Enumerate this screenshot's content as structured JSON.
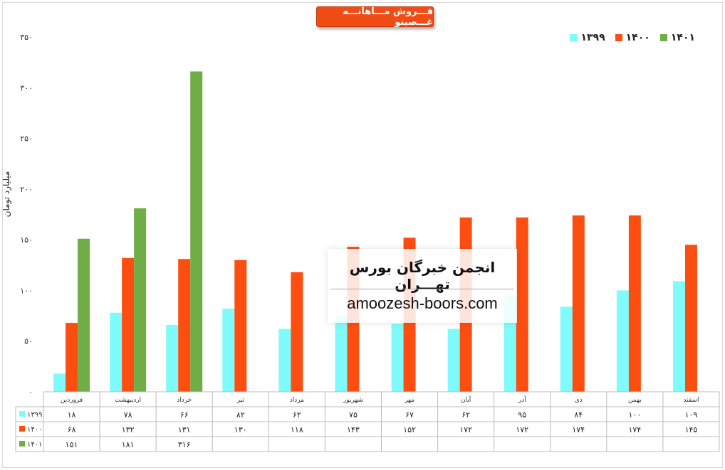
{
  "chart_data": {
    "type": "bar",
    "title": "فـــروش مـــاهانـــه غـــصینو",
    "ylabel": "میلیارد تومان",
    "ylim": [
      0,
      350
    ],
    "yticks": [
      0,
      50,
      100,
      150,
      200,
      250,
      300,
      350
    ],
    "ytick_labels": [
      "۰",
      "۵۰",
      "۱۰۰",
      "۱۵۰",
      "۲۰۰",
      "۲۵۰",
      "۳۰۰",
      "۳۵۰"
    ],
    "categories": [
      "فروردین",
      "اردیبهشت",
      "خرداد",
      "تیر",
      "مرداد",
      "شهریور",
      "مهر",
      "آبان",
      "آذر",
      "دی",
      "بهمن",
      "اسفند"
    ],
    "legend_position": "top-right",
    "grid": false,
    "series": [
      {
        "name": "۱۳۹۹",
        "color": "#7ffbfb",
        "values": [
          18,
          78,
          66,
          82,
          62,
          75,
          67,
          62,
          95,
          84,
          100,
          109
        ],
        "labels": [
          "۱۸",
          "۷۸",
          "۶۶",
          "۸۲",
          "۶۲",
          "۷۵",
          "۶۷",
          "۶۲",
          "۹۵",
          "۸۴",
          "۱۰۰",
          "۱۰۹"
        ]
      },
      {
        "name": "۱۴۰۰",
        "color": "#fd4e12",
        "values": [
          68,
          132,
          131,
          130,
          118,
          143,
          152,
          172,
          172,
          174,
          174,
          145
        ],
        "labels": [
          "۶۸",
          "۱۳۲",
          "۱۳۱",
          "۱۳۰",
          "۱۱۸",
          "۱۴۳",
          "۱۵۲",
          "۱۷۲",
          "۱۷۲",
          "۱۷۴",
          "۱۷۴",
          "۱۴۵"
        ]
      },
      {
        "name": "۱۴۰۱",
        "color": "#70ad47",
        "values": [
          151,
          181,
          316,
          null,
          null,
          null,
          null,
          null,
          null,
          null,
          null,
          null
        ],
        "labels": [
          "۱۵۱",
          "۱۸۱",
          "۳۱۶",
          "",
          "",
          "",
          "",
          "",
          "",
          "",
          "",
          ""
        ]
      }
    ]
  },
  "watermark": {
    "line1": "انجمن خبرگان بورس تهـــران",
    "line2": "amoozesh-boors.com"
  }
}
